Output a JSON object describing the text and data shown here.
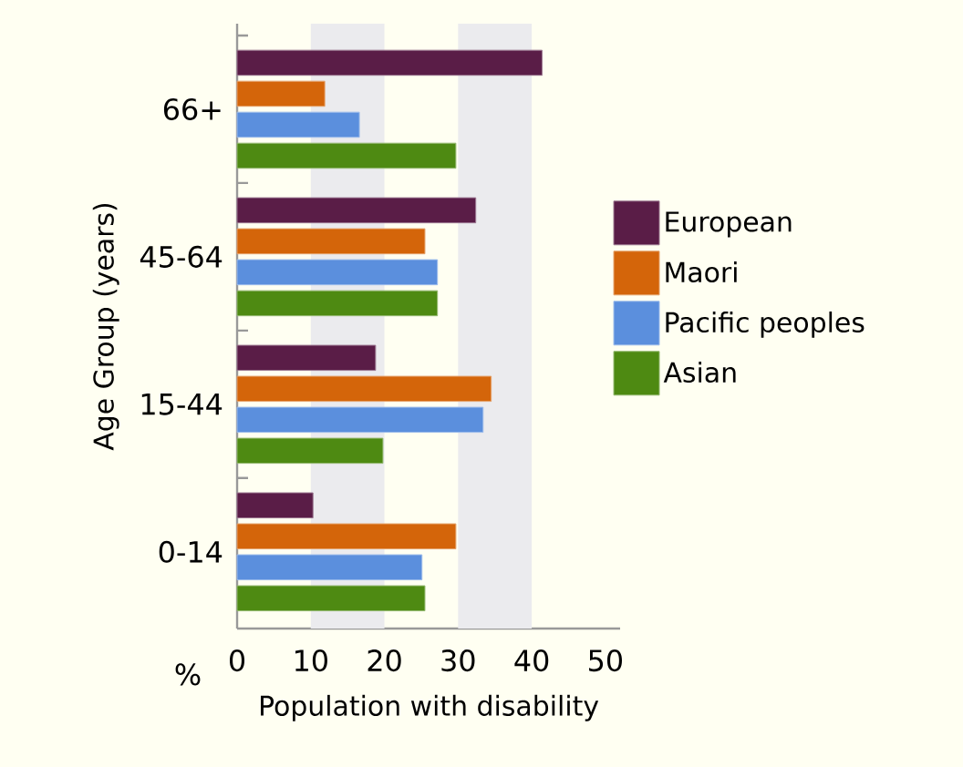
{
  "chart_data": {
    "type": "bar",
    "orientation": "horizontal",
    "ylabel": "Age Group (years)",
    "xlabel": "Population with disability",
    "categories": [
      "66+",
      "45-64",
      "15-44",
      "0-14"
    ],
    "series": [
      {
        "name": "European",
        "color": "#5a1d47",
        "values": [
          41.4,
          32.4,
          18.8,
          10.3
        ]
      },
      {
        "name": "Maori",
        "color": "#d4650a",
        "values": [
          11.9,
          25.5,
          34.5,
          29.7
        ]
      },
      {
        "name": "Pacific peoples",
        "color": "#5b8fdd",
        "values": [
          16.6,
          27.2,
          33.4,
          25.1
        ]
      },
      {
        "name": "Asian",
        "color": "#4e8a12",
        "values": [
          29.7,
          27.2,
          19.8,
          25.5
        ]
      }
    ],
    "xlim": [
      0,
      52
    ],
    "xticks": [
      0,
      10,
      20,
      30,
      40,
      50
    ],
    "bands": [
      {
        "axis": "x",
        "from": 10,
        "to": 20,
        "color": "#ebebee"
      },
      {
        "axis": "x",
        "from": 30,
        "to": 40,
        "color": "#ebebee"
      }
    ],
    "annotations": [
      "%"
    ],
    "legend": "right"
  }
}
